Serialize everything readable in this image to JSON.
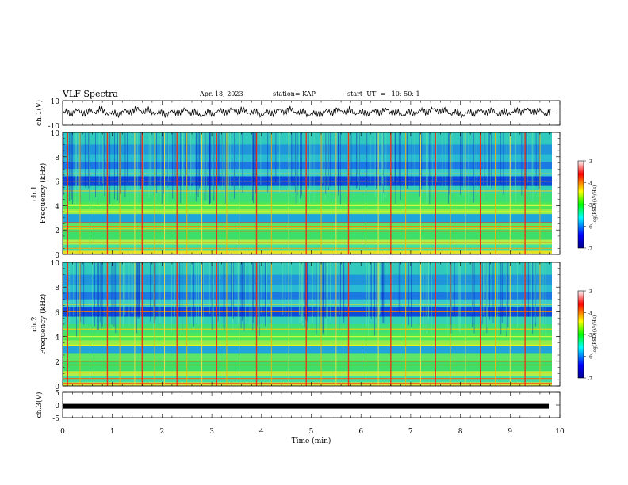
{
  "header": {
    "title": "VLF Spectra",
    "date": "Apr. 18, 2023",
    "station": "station= KAP",
    "start": "start  UT  =   10: 50: 1"
  },
  "chart_data": [
    {
      "type": "line",
      "panel": "ch1-waveform",
      "ylabel": "ch.1(V)",
      "ylim": [
        -10,
        10
      ],
      "yticks": [
        "10",
        "-10"
      ],
      "xlim": [
        0,
        10
      ],
      "series": [
        {
          "values": [
            -0.5,
            1.2,
            0.3,
            2.1,
            -1.0,
            0.8,
            2.5,
            1.1,
            -0.6,
            0.4,
            1.8,
            -1.5,
            0.2,
            1.3,
            2.2,
            0.7,
            -0.9,
            1.0,
            2.4,
            0.5,
            -1.2,
            0.6,
            1.9,
            1.4,
            -0.3,
            0.9,
            2.0,
            -0.8,
            0.1,
            1.6,
            2.6,
            0.4,
            -1.1,
            0.7,
            1.5,
            -0.2,
            0.8,
            2.3,
            1.2,
            0.0
          ]
        }
      ]
    },
    {
      "type": "heatmap",
      "panel": "ch1-spectrogram",
      "ylabel": "ch.1\nFrequency  (kHz)",
      "ylim": [
        0,
        10
      ],
      "yticks": [
        "0",
        "2",
        "4",
        "6",
        "8",
        "10"
      ],
      "xlim": [
        0,
        10
      ],
      "colorbar": {
        "label": "log(PSD)(V²/Hz)",
        "range": [
          -7,
          -3
        ],
        "ticks": [
          "-3",
          "-4",
          "-5",
          "-6",
          "-7"
        ]
      }
    },
    {
      "type": "heatmap",
      "panel": "ch2-spectrogram",
      "ylabel": "ch.2\nFrequency  (kHz)",
      "ylim": [
        0,
        10
      ],
      "yticks": [
        "0",
        "2",
        "4",
        "6",
        "8",
        "10"
      ],
      "xlim": [
        0,
        10
      ],
      "colorbar": {
        "label": "log(PSD)(V²/Hz)",
        "range": [
          -7,
          -3
        ],
        "ticks": [
          "-3",
          "-4",
          "-5",
          "-6",
          "-7"
        ]
      }
    },
    {
      "type": "line",
      "panel": "ch3-waveform",
      "ylabel": "ch.3(V)",
      "ylim": [
        -5,
        5
      ],
      "yticks": [
        "5",
        "0",
        "-5"
      ],
      "xlim": [
        0,
        10
      ],
      "xlabel": "Time  (min)",
      "xticks": [
        "0",
        "1",
        "2",
        "3",
        "4",
        "5",
        "6",
        "7",
        "8",
        "9",
        "10"
      ],
      "series": [
        {
          "values": [
            -0.5,
            -0.5
          ]
        }
      ]
    }
  ]
}
